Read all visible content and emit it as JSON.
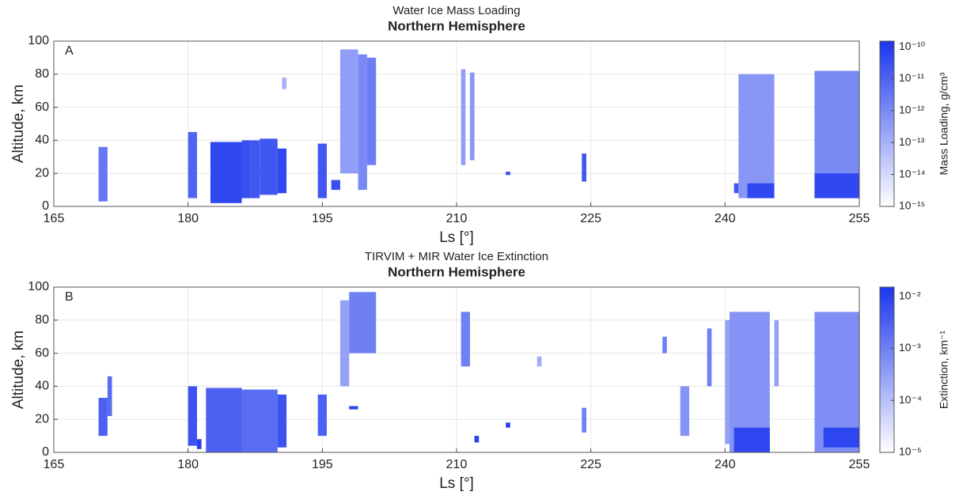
{
  "chart_data": [
    {
      "type": "heatmap",
      "title": "Water Ice Mass Loading",
      "subtitle": "Northern Hemisphere",
      "annotation": "A",
      "xlabel": "Ls [°]",
      "ylabel": "Altitude, km",
      "xlim": [
        165,
        255
      ],
      "xticks": [
        165,
        180,
        195,
        210,
        225,
        240,
        255
      ],
      "ylim": [
        0,
        100
      ],
      "yticks": [
        0,
        20,
        40,
        60,
        80,
        100
      ],
      "grid": true,
      "colormap": [
        "#ffffff",
        "#1a35ee"
      ],
      "colorbar": {
        "label": "Mass Loading, g/cm³",
        "scale": "log",
        "lim": [
          1e-15,
          1.5e-10
        ],
        "ticks": [
          {
            "value": 1e-15,
            "label": "10⁻¹⁵"
          },
          {
            "value": 1e-14,
            "label": "10⁻¹⁴"
          },
          {
            "value": 1e-13,
            "label": "10⁻¹³"
          },
          {
            "value": 1e-12,
            "label": "10⁻¹²"
          },
          {
            "value": 1e-11,
            "label": "10⁻¹¹"
          },
          {
            "value": 1e-10,
            "label": "10⁻¹⁰"
          }
        ]
      },
      "cells": [
        {
          "x": [
            170,
            171
          ],
          "y": [
            3,
            36
          ],
          "value": 3e-12
        },
        {
          "x": [
            180,
            181
          ],
          "y": [
            5,
            45
          ],
          "value": 1e-11
        },
        {
          "x": [
            182.5,
            186
          ],
          "y": [
            2,
            39
          ],
          "value": 5e-11
        },
        {
          "x": [
            186,
            187
          ],
          "y": [
            5,
            40
          ],
          "value": 3e-11
        },
        {
          "x": [
            187,
            188
          ],
          "y": [
            5,
            40
          ],
          "value": 2e-11
        },
        {
          "x": [
            188,
            190
          ],
          "y": [
            7,
            41
          ],
          "value": 2e-11
        },
        {
          "x": [
            190,
            191
          ],
          "y": [
            8,
            35
          ],
          "value": 5e-11
        },
        {
          "x": [
            190.5,
            191
          ],
          "y": [
            71,
            78
          ],
          "value": 1e-13
        },
        {
          "x": [
            194.5,
            195.5
          ],
          "y": [
            5,
            38
          ],
          "value": 2e-11
        },
        {
          "x": [
            196,
            197
          ],
          "y": [
            10,
            16
          ],
          "value": 3e-11
        },
        {
          "x": [
            197,
            199
          ],
          "y": [
            20,
            95
          ],
          "value": 3e-13
        },
        {
          "x": [
            199,
            200
          ],
          "y": [
            10,
            92
          ],
          "value": 1e-12
        },
        {
          "x": [
            200,
            201
          ],
          "y": [
            25,
            90
          ],
          "value": 2e-12
        },
        {
          "x": [
            210.5,
            211
          ],
          "y": [
            25,
            83
          ],
          "value": 3e-13
        },
        {
          "x": [
            211.5,
            212
          ],
          "y": [
            28,
            81
          ],
          "value": 5e-13
        },
        {
          "x": [
            215.5,
            216
          ],
          "y": [
            19,
            21
          ],
          "value": 3e-11
        },
        {
          "x": [
            224,
            224.5
          ],
          "y": [
            15,
            32
          ],
          "value": 2e-11
        },
        {
          "x": [
            241,
            241.5
          ],
          "y": [
            8,
            14
          ],
          "value": 2e-11
        },
        {
          "x": [
            241.5,
            245.5
          ],
          "y": [
            5,
            80
          ],
          "value": 5e-13
        },
        {
          "x": [
            242.5,
            245.5
          ],
          "y": [
            5,
            14
          ],
          "value": 5e-11
        },
        {
          "x": [
            250,
            255
          ],
          "y": [
            5,
            82
          ],
          "value": 1e-12
        },
        {
          "x": [
            250,
            255
          ],
          "y": [
            5,
            20
          ],
          "value": 5e-11
        }
      ]
    },
    {
      "type": "heatmap",
      "title": "TIRVIM + MIR Water Ice Extinction",
      "subtitle": "Northern Hemisphere",
      "annotation": "B",
      "xlabel": "Ls [°]",
      "ylabel": "Altitude, km",
      "xlim": [
        165,
        255
      ],
      "xticks": [
        165,
        180,
        195,
        210,
        225,
        240,
        255
      ],
      "ylim": [
        0,
        100
      ],
      "yticks": [
        0,
        20,
        40,
        60,
        80,
        100
      ],
      "grid": true,
      "colormap": [
        "#ffffff",
        "#1a35ee"
      ],
      "colorbar": {
        "label": "Extinction, km⁻¹",
        "scale": "log",
        "lim": [
          1e-05,
          0.015
        ],
        "ticks": [
          {
            "value": 1e-05,
            "label": "10⁻⁵"
          },
          {
            "value": 0.0001,
            "label": "10⁻⁴"
          },
          {
            "value": 0.001,
            "label": "10⁻³"
          },
          {
            "value": 0.01,
            "label": "10⁻²"
          }
        ]
      },
      "cells": [
        {
          "x": [
            170,
            171
          ],
          "y": [
            10,
            33
          ],
          "value": 0.003
        },
        {
          "x": [
            171,
            171.5
          ],
          "y": [
            22,
            46
          ],
          "value": 0.002
        },
        {
          "x": [
            180,
            181
          ],
          "y": [
            4,
            40
          ],
          "value": 0.005
        },
        {
          "x": [
            181,
            181.5
          ],
          "y": [
            2,
            8
          ],
          "value": 0.01
        },
        {
          "x": [
            182,
            186
          ],
          "y": [
            0,
            39
          ],
          "value": 0.003
        },
        {
          "x": [
            186,
            190
          ],
          "y": [
            0,
            38
          ],
          "value": 0.002
        },
        {
          "x": [
            190,
            191
          ],
          "y": [
            3,
            35
          ],
          "value": 0.005
        },
        {
          "x": [
            194.5,
            195.5
          ],
          "y": [
            10,
            35
          ],
          "value": 0.003
        },
        {
          "x": [
            197,
            198
          ],
          "y": [
            40,
            92
          ],
          "value": 0.0003
        },
        {
          "x": [
            198,
            201
          ],
          "y": [
            60,
            97
          ],
          "value": 0.001
        },
        {
          "x": [
            198,
            199
          ],
          "y": [
            26,
            28
          ],
          "value": 0.008
        },
        {
          "x": [
            210.5,
            211.5
          ],
          "y": [
            52,
            85
          ],
          "value": 0.001
        },
        {
          "x": [
            212,
            212.5
          ],
          "y": [
            6,
            10
          ],
          "value": 0.01
        },
        {
          "x": [
            215.5,
            216
          ],
          "y": [
            15,
            18
          ],
          "value": 0.01
        },
        {
          "x": [
            219,
            219.5
          ],
          "y": [
            52,
            58
          ],
          "value": 0.0002
        },
        {
          "x": [
            224,
            224.5
          ],
          "y": [
            12,
            27
          ],
          "value": 0.001
        },
        {
          "x": [
            233,
            233.5
          ],
          "y": [
            60,
            70
          ],
          "value": 0.001
        },
        {
          "x": [
            235,
            236
          ],
          "y": [
            10,
            40
          ],
          "value": 0.0005
        },
        {
          "x": [
            238,
            238.5
          ],
          "y": [
            40,
            75
          ],
          "value": 0.001
        },
        {
          "x": [
            240,
            240.5
          ],
          "y": [
            5,
            80
          ],
          "value": 0.0003
        },
        {
          "x": [
            240.5,
            245
          ],
          "y": [
            0,
            85
          ],
          "value": 0.0005
        },
        {
          "x": [
            241,
            245
          ],
          "y": [
            0,
            15
          ],
          "value": 0.008
        },
        {
          "x": [
            245.5,
            246
          ],
          "y": [
            40,
            80
          ],
          "value": 0.0003
        },
        {
          "x": [
            250,
            255
          ],
          "y": [
            0,
            85
          ],
          "value": 0.0006
        },
        {
          "x": [
            251,
            255
          ],
          "y": [
            3,
            15
          ],
          "value": 0.008
        }
      ]
    }
  ]
}
